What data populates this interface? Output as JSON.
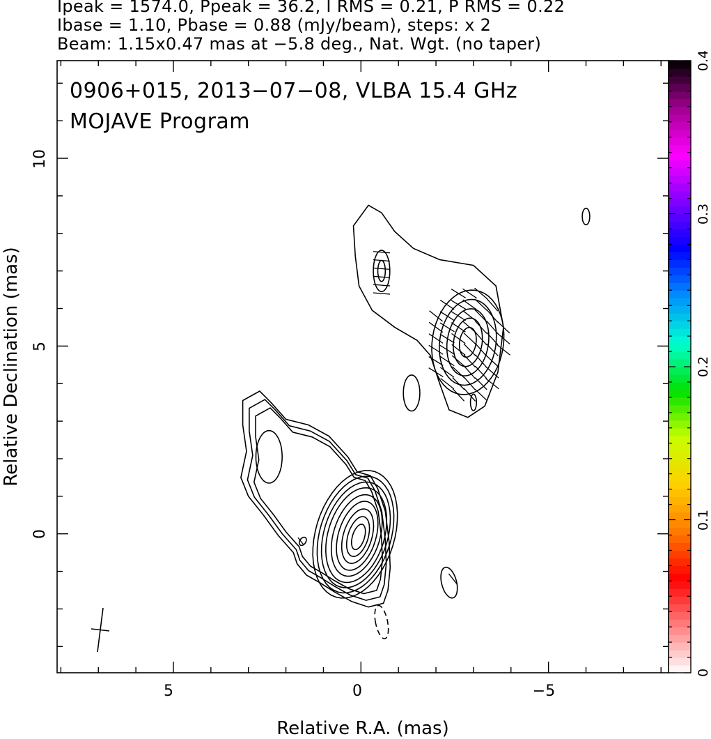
{
  "header": {
    "line1": "Ipeak = 1574.0, Ppeak = 36.2, I RMS = 0.21, P RMS = 0.22",
    "line2": "Ibase = 1.10, Pbase = 0.88 (mJy/beam), steps: x 2",
    "line3": "Beam: 1.15x0.47 mas at −5.8 deg., Nat. Wgt. (no taper)"
  },
  "plot": {
    "title_line1": "0906+015, 2013−07−08, VLBA 15.4 GHz",
    "title_line2": "MOJAVE Program"
  },
  "chart_data": {
    "type": "heatmap",
    "title": "0906+015, 2013−07−08, VLBA 15.4 GHz",
    "subtitle": "MOJAVE Program",
    "xlabel": "Relative R.A. (mas)",
    "ylabel": "Relative Declination (mas)",
    "xlim": [
      8.1,
      -8.2
    ],
    "ylim": [
      -3.7,
      12.6
    ],
    "xticks": [
      5,
      0,
      -5
    ],
    "xtick_labels": [
      "5",
      "0",
      "−5"
    ],
    "yticks": [
      0,
      5,
      10
    ],
    "ytick_labels": [
      "0",
      "5",
      "10"
    ],
    "colorbar": {
      "range": [
        0,
        0.4
      ],
      "ticks": [
        0,
        0.1,
        0.2,
        0.3,
        0.4
      ],
      "tick_labels": [
        "0",
        "0.1",
        "0.2",
        "0.3",
        "0.4"
      ],
      "colormap": [
        "#ffffff",
        "#ff8080",
        "#ff0000",
        "#ff7a00",
        "#ffd000",
        "#c8ff00",
        "#00e000",
        "#00ffd0",
        "#0090ff",
        "#0000ff",
        "#8000ff",
        "#ff00ff",
        "#a00090",
        "#000000"
      ]
    },
    "features": {
      "core": {
        "ra": 0.0,
        "dec": 0.0,
        "intensity_peak_mJy_per_beam": 1574.0
      },
      "inner_jet_knot": {
        "ra": 2.4,
        "dec": 2.1
      },
      "outer_jet_knot": {
        "ra": -2.9,
        "dec": 5.0
      },
      "northern_knot": {
        "ra": -0.5,
        "dec": 7.0
      },
      "beam": {
        "major_mas": 1.15,
        "minor_mas": 0.47,
        "pa_deg": -5.8
      }
    },
    "colors": {
      "contour": "#000000",
      "axes": "#000000",
      "background": "#ffffff"
    }
  }
}
